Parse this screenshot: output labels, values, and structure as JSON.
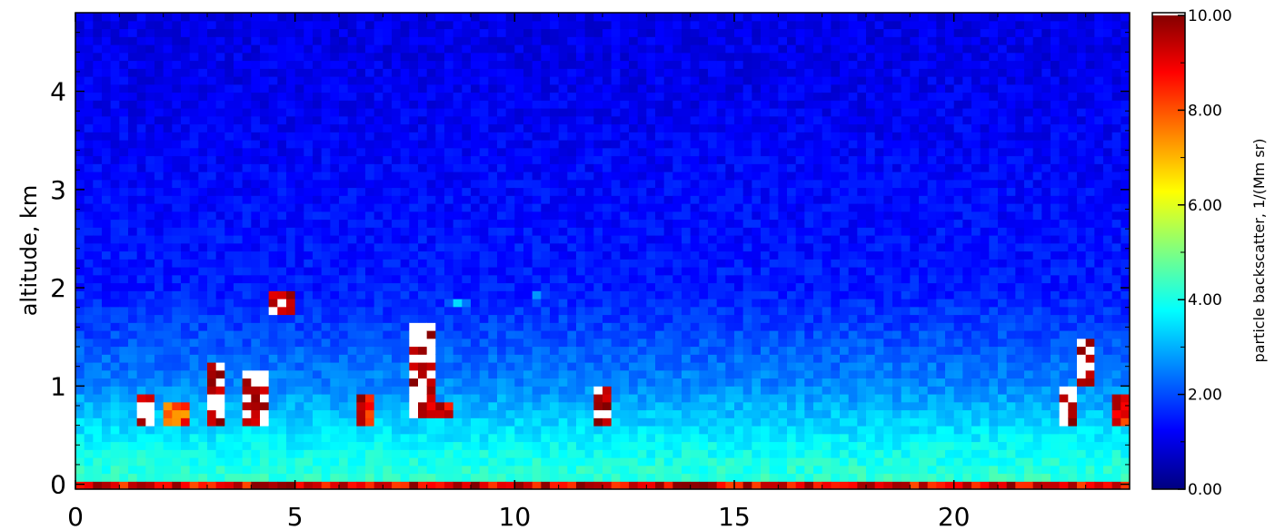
{
  "chart_data": {
    "type": "heatmap",
    "title": "",
    "xlabel": "",
    "ylabel": "altitude,  km",
    "x_range": [
      0,
      24
    ],
    "y_range": [
      -0.05,
      4.8
    ],
    "x_ticks": [
      0,
      5,
      10,
      15,
      20
    ],
    "y_ticks": [
      0,
      1,
      2,
      3,
      4
    ],
    "colorbar": {
      "label": "particle backscatter, 1/(Mm sr)",
      "range": [
        0,
        10
      ],
      "ticks": [
        "0.00",
        "2.00",
        "4.00",
        "6.00",
        "8.00",
        "10.00"
      ],
      "colormap": "jet",
      "overflow_color": "#ffffff"
    },
    "surface_layer": {
      "top_km": 0.05,
      "backscatter_range": [
        8,
        10
      ]
    },
    "boundary_layer": {
      "top_km": 0.75,
      "backscatter_range": [
        3,
        4.5
      ],
      "profile": [
        {
          "alt_km": 0.0,
          "value": 4.3
        },
        {
          "alt_km": 0.3,
          "value": 3.9
        },
        {
          "alt_km": 0.7,
          "value": 3.2
        },
        {
          "alt_km": 1.0,
          "value": 2.6
        },
        {
          "alt_km": 1.5,
          "value": 2.0
        },
        {
          "alt_km": 2.0,
          "value": 1.5
        },
        {
          "alt_km": 3.0,
          "value": 1.3
        },
        {
          "alt_km": 4.0,
          "value": 1.1
        },
        {
          "alt_km": 4.8,
          "value": 1.0
        }
      ]
    },
    "features": [
      {
        "x": 1.6,
        "y0": 0.62,
        "y1": 0.9,
        "value": 11
      },
      {
        "x": 2.3,
        "y0": 0.62,
        "y1": 0.82,
        "value": 9
      },
      {
        "x": 3.2,
        "y0": 0.62,
        "y1": 1.25,
        "value": 11
      },
      {
        "x": 4.1,
        "y0": 0.62,
        "y1": 1.2,
        "value": 11
      },
      {
        "x": 4.7,
        "y0": 1.75,
        "y1": 1.95,
        "value": 11
      },
      {
        "x": 6.6,
        "y0": 0.62,
        "y1": 0.92,
        "value": 10
      },
      {
        "x": 7.9,
        "y0": 0.7,
        "y1": 1.65,
        "value": 11
      },
      {
        "x": 8.3,
        "y0": 0.65,
        "y1": 0.85,
        "value": 10
      },
      {
        "x": 8.7,
        "y0": 1.8,
        "y1": 1.9,
        "value": 4
      },
      {
        "x": 10.6,
        "y0": 1.9,
        "y1": 1.95,
        "value": 3.5
      },
      {
        "x": 12.0,
        "y0": 0.62,
        "y1": 1.0,
        "value": 11
      },
      {
        "x": 22.6,
        "y0": 0.62,
        "y1": 1.0,
        "value": 11
      },
      {
        "x": 23.0,
        "y0": 1.0,
        "y1": 1.45,
        "value": 11
      },
      {
        "x": 23.9,
        "y0": 0.6,
        "y1": 0.9,
        "value": 10
      }
    ]
  }
}
